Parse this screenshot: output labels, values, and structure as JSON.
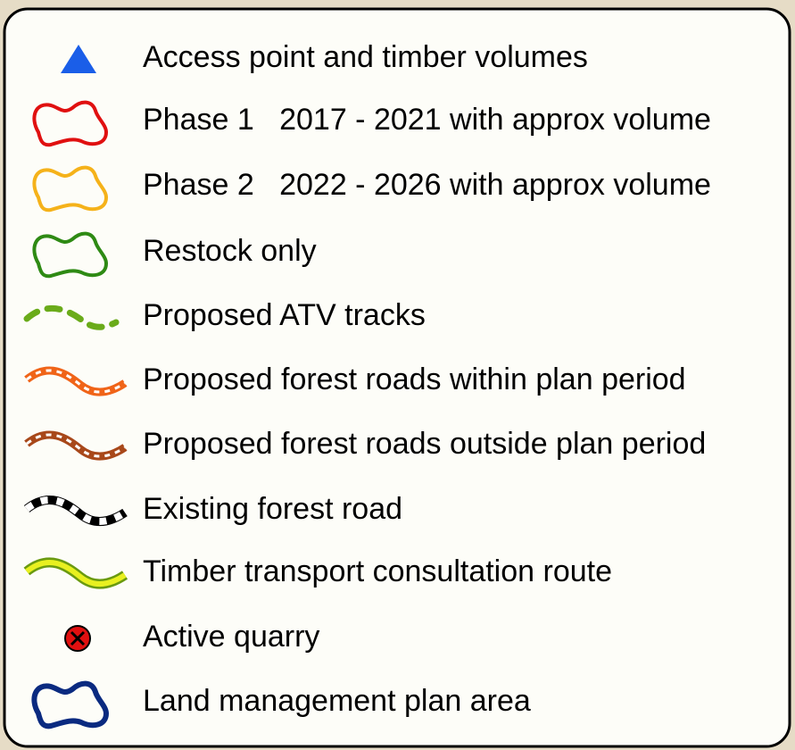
{
  "legend": {
    "items": [
      {
        "label": "Access point and timber volumes"
      },
      {
        "label": "Phase 1   2017 - 2021 with approx volume"
      },
      {
        "label": "Phase 2   2022 - 2026 with approx volume"
      },
      {
        "label": "Restock only"
      },
      {
        "label": "Proposed ATV tracks"
      },
      {
        "label": "Proposed forest roads within plan period"
      },
      {
        "label": "Proposed forest roads outside plan period"
      },
      {
        "label": "Existing forest road"
      },
      {
        "label": "Timber transport consultation route"
      },
      {
        "label": "Active quarry"
      },
      {
        "label": "Land management plan area"
      }
    ]
  }
}
